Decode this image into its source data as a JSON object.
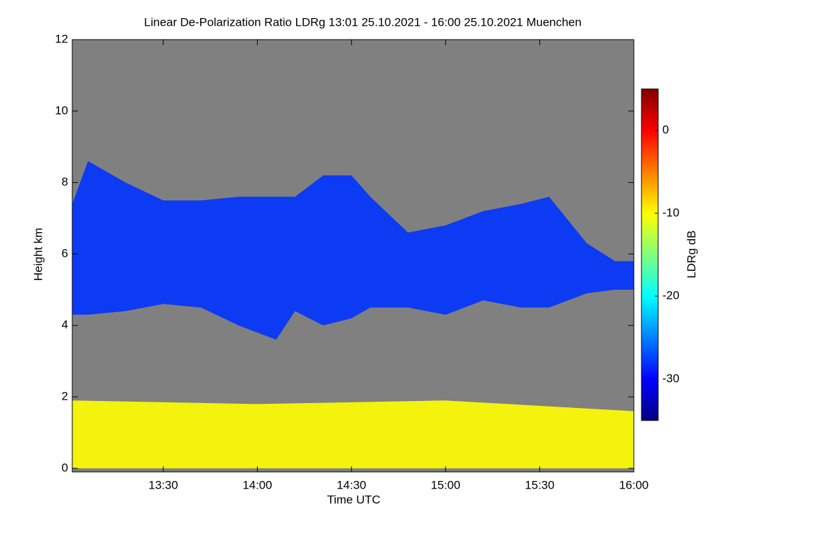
{
  "chart_data": {
    "type": "heatmap",
    "title": "Linear De-Polarization Ratio LDRg   13:01 25.10.2021 - 16:00 25.10.2021 Muenchen",
    "x_label": "Time UTC",
    "y_label": "Height km",
    "colorbar_label": "LDRg dB",
    "xlim": [
      13.0167,
      16.0
    ],
    "xticks": [
      {
        "value": 13.5,
        "label": "13:30"
      },
      {
        "value": 14.0,
        "label": "14:00"
      },
      {
        "value": 14.5,
        "label": "14:30"
      },
      {
        "value": 15.0,
        "label": "15:00"
      },
      {
        "value": 15.5,
        "label": "15:30"
      },
      {
        "value": 16.0,
        "label": "16:00"
      }
    ],
    "ylim": [
      -0.1,
      12
    ],
    "yticks": [
      0,
      2,
      4,
      6,
      8,
      10,
      12
    ],
    "clim": [
      -35,
      5
    ],
    "cticks": [
      0,
      -10,
      -20,
      -30
    ],
    "colormap": "jet",
    "background": "#808080",
    "layers": [
      {
        "x": [
          13.0167,
          13.1,
          13.3,
          13.5,
          13.7,
          13.9,
          14.1,
          14.2,
          14.35,
          14.5,
          14.6,
          14.8,
          15.0,
          15.2,
          15.4,
          15.55,
          15.75,
          15.9,
          16.0
        ],
        "top": [
          7.4,
          8.6,
          8.0,
          7.5,
          7.5,
          7.6,
          7.6,
          7.6,
          8.2,
          8.2,
          7.6,
          6.6,
          6.8,
          7.2,
          7.4,
          7.6,
          6.3,
          5.8,
          5.8
        ],
        "bottom": [
          4.3,
          4.3,
          4.4,
          4.6,
          4.5,
          4.0,
          3.6,
          4.4,
          4.0,
          4.2,
          4.5,
          4.5,
          4.3,
          4.7,
          4.5,
          4.5,
          4.9,
          5.0,
          5.0
        ],
        "value": -28
      },
      {
        "x": [
          13.0167,
          14.0,
          15.0,
          16.0
        ],
        "top": [
          1.9,
          1.8,
          1.9,
          1.6
        ],
        "bottom": [
          0,
          0,
          0,
          0
        ],
        "value": -10
      }
    ]
  }
}
